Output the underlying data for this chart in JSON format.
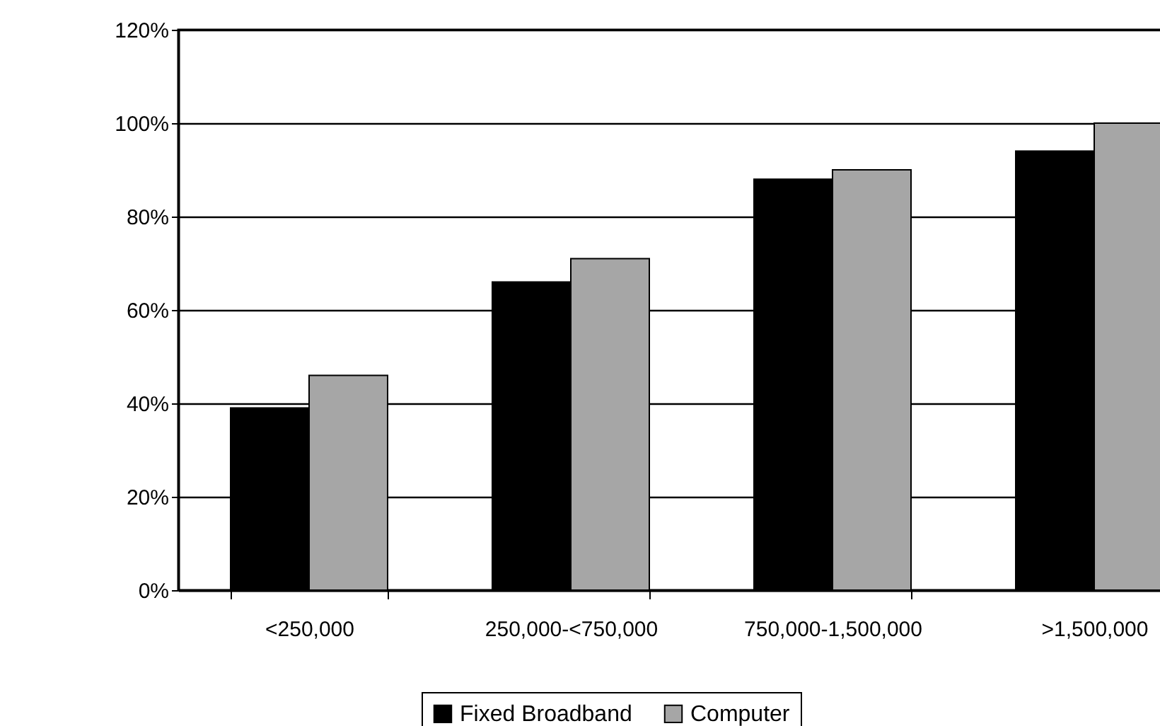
{
  "chart_data": {
    "type": "bar",
    "categories": [
      "<250,000",
      "250,000-<750,000",
      "750,000-1,500,000",
      ">1,500,000"
    ],
    "series": [
      {
        "name": "Fixed Broadband",
        "color": "#000000",
        "values": [
          39,
          66,
          88,
          94
        ]
      },
      {
        "name": "Computer",
        "color": "#a6a6a6",
        "values": [
          46,
          71,
          90,
          100
        ]
      }
    ],
    "ylim": [
      0,
      120
    ],
    "yticks": [
      {
        "value": 0,
        "label": "0%"
      },
      {
        "value": 20,
        "label": "20%"
      },
      {
        "value": 40,
        "label": "40%"
      },
      {
        "value": 60,
        "label": "60%"
      },
      {
        "value": 80,
        "label": "80%"
      },
      {
        "value": 100,
        "label": "100%"
      },
      {
        "value": 120,
        "label": "120%"
      }
    ],
    "grid": "y",
    "legend": "bottom"
  }
}
